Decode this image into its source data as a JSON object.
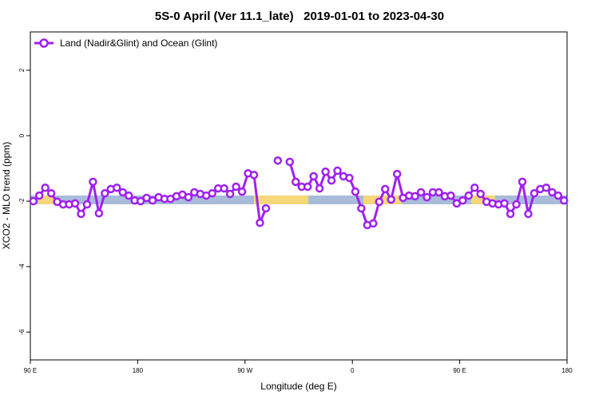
{
  "chart_data": {
    "type": "line",
    "title": "5S-0 April (Ver 11.1_late)   2019-01-01 to 2023-04-30",
    "x_label": "Longitude (deg E)",
    "y_label": "XCO2 - MLO trend (ppm)",
    "legend": "top-left",
    "xlim": [
      90,
      540
    ],
    "xticks": [
      {
        "value": 90,
        "label": "90 E"
      },
      180,
      {
        "value": 270,
        "label": "90 W"
      },
      {
        "value": 360,
        "label": "0"
      },
      {
        "value": 450,
        "label": "90 E"
      },
      {
        "value": 540,
        "label": "180"
      }
    ],
    "ylim": [
      -6.85,
      3.17
    ],
    "yticks": [
      2,
      0,
      -2,
      -4,
      -6
    ],
    "x": [
      92.5,
      97.5,
      102.5,
      107.5,
      112.5,
      117.5,
      122.5,
      127.5,
      132.5,
      137.5,
      142.5,
      147.5,
      152.5,
      157.5,
      162.5,
      167.5,
      172.5,
      177.5,
      182.5,
      187.5,
      192.5,
      197.5,
      202.5,
      207.5,
      212.5,
      217.5,
      222.5,
      227.5,
      232.5,
      237.5,
      242.5,
      247.5,
      252.5,
      257.5,
      262.5,
      267.5,
      272.5,
      277.5,
      282.5,
      287.5,
      292.5,
      297.5,
      302.5,
      307.5,
      312.5,
      317.5,
      322.5,
      327.5,
      332.5,
      337.5,
      342.5,
      347.5,
      352.5,
      357.5,
      362.5,
      367.5,
      372.5,
      377.5,
      382.5,
      387.5,
      392.5,
      397.5,
      402.5,
      407.5,
      412.5,
      417.5,
      422.5,
      427.5,
      432.5,
      437.5,
      442.5,
      447.5,
      452.5,
      457.5,
      462.5,
      467.5,
      472.5,
      477.5,
      482.5,
      487.5,
      492.5,
      497.5,
      502.5,
      507.5,
      512.5,
      517.5,
      522.5,
      527.5,
      532.5,
      537.5
    ],
    "series": [
      {
        "name": "Land (Nadir&Glint) and Ocean (Glint)",
        "color": "#a020f0",
        "values": [
          -2.0,
          -1.83,
          -1.59,
          -1.76,
          -2.02,
          -2.1,
          -2.1,
          -2.07,
          -2.39,
          -2.1,
          -1.41,
          -2.37,
          -1.76,
          -1.63,
          -1.59,
          -1.73,
          -1.83,
          -1.98,
          -2.0,
          -1.9,
          -1.98,
          -1.88,
          -1.93,
          -1.93,
          -1.85,
          -1.8,
          -1.88,
          -1.73,
          -1.78,
          -1.83,
          -1.76,
          -1.61,
          -1.61,
          -1.78,
          -1.56,
          -1.71,
          -1.15,
          -1.2,
          -2.66,
          -2.22,
          null,
          -0.76,
          null,
          -0.8,
          -1.41,
          -1.56,
          -1.56,
          -1.24,
          -1.61,
          -1.1,
          -1.37,
          -1.07,
          -1.24,
          -1.29,
          -1.71,
          -2.22,
          -2.73,
          -2.68,
          -2.02,
          -1.63,
          -1.95,
          -1.17,
          -1.9,
          -1.83,
          -1.85,
          -1.73,
          -1.88,
          -1.73,
          -1.73,
          -1.85,
          -1.83,
          -2.07,
          -1.98,
          -1.83,
          -1.59,
          -1.78,
          -2.02,
          -2.07,
          -2.1,
          -2.07,
          -2.39,
          -2.1,
          -1.41,
          -2.39,
          -1.76,
          -1.63,
          -1.59,
          -1.73,
          -1.83,
          -1.98
        ]
      }
    ]
  }
}
